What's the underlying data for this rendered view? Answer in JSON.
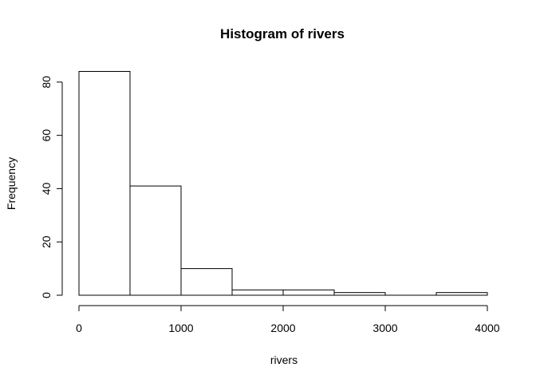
{
  "chart_data": {
    "type": "bar",
    "title": "Histogram of rivers",
    "xlabel": "rivers",
    "ylabel": "Frequency",
    "bins": [
      {
        "from": 0,
        "to": 500,
        "count": 84
      },
      {
        "from": 500,
        "to": 1000,
        "count": 41
      },
      {
        "from": 1000,
        "to": 1500,
        "count": 10
      },
      {
        "from": 1500,
        "to": 2000,
        "count": 2
      },
      {
        "from": 2000,
        "to": 2500,
        "count": 2
      },
      {
        "from": 2500,
        "to": 3000,
        "count": 1
      },
      {
        "from": 3000,
        "to": 3500,
        "count": 0
      },
      {
        "from": 3500,
        "to": 4000,
        "count": 1
      }
    ],
    "xticks": [
      0,
      1000,
      2000,
      3000,
      4000
    ],
    "yticks": [
      0,
      20,
      40,
      60,
      80
    ],
    "xlim": [
      0,
      4000
    ],
    "ylim": [
      0,
      84
    ],
    "grid": false,
    "legend": "none",
    "colors": {
      "bar_fill": "#ffffff",
      "bar_stroke": "#000000",
      "axis": "#000000",
      "background": "#ffffff"
    }
  }
}
